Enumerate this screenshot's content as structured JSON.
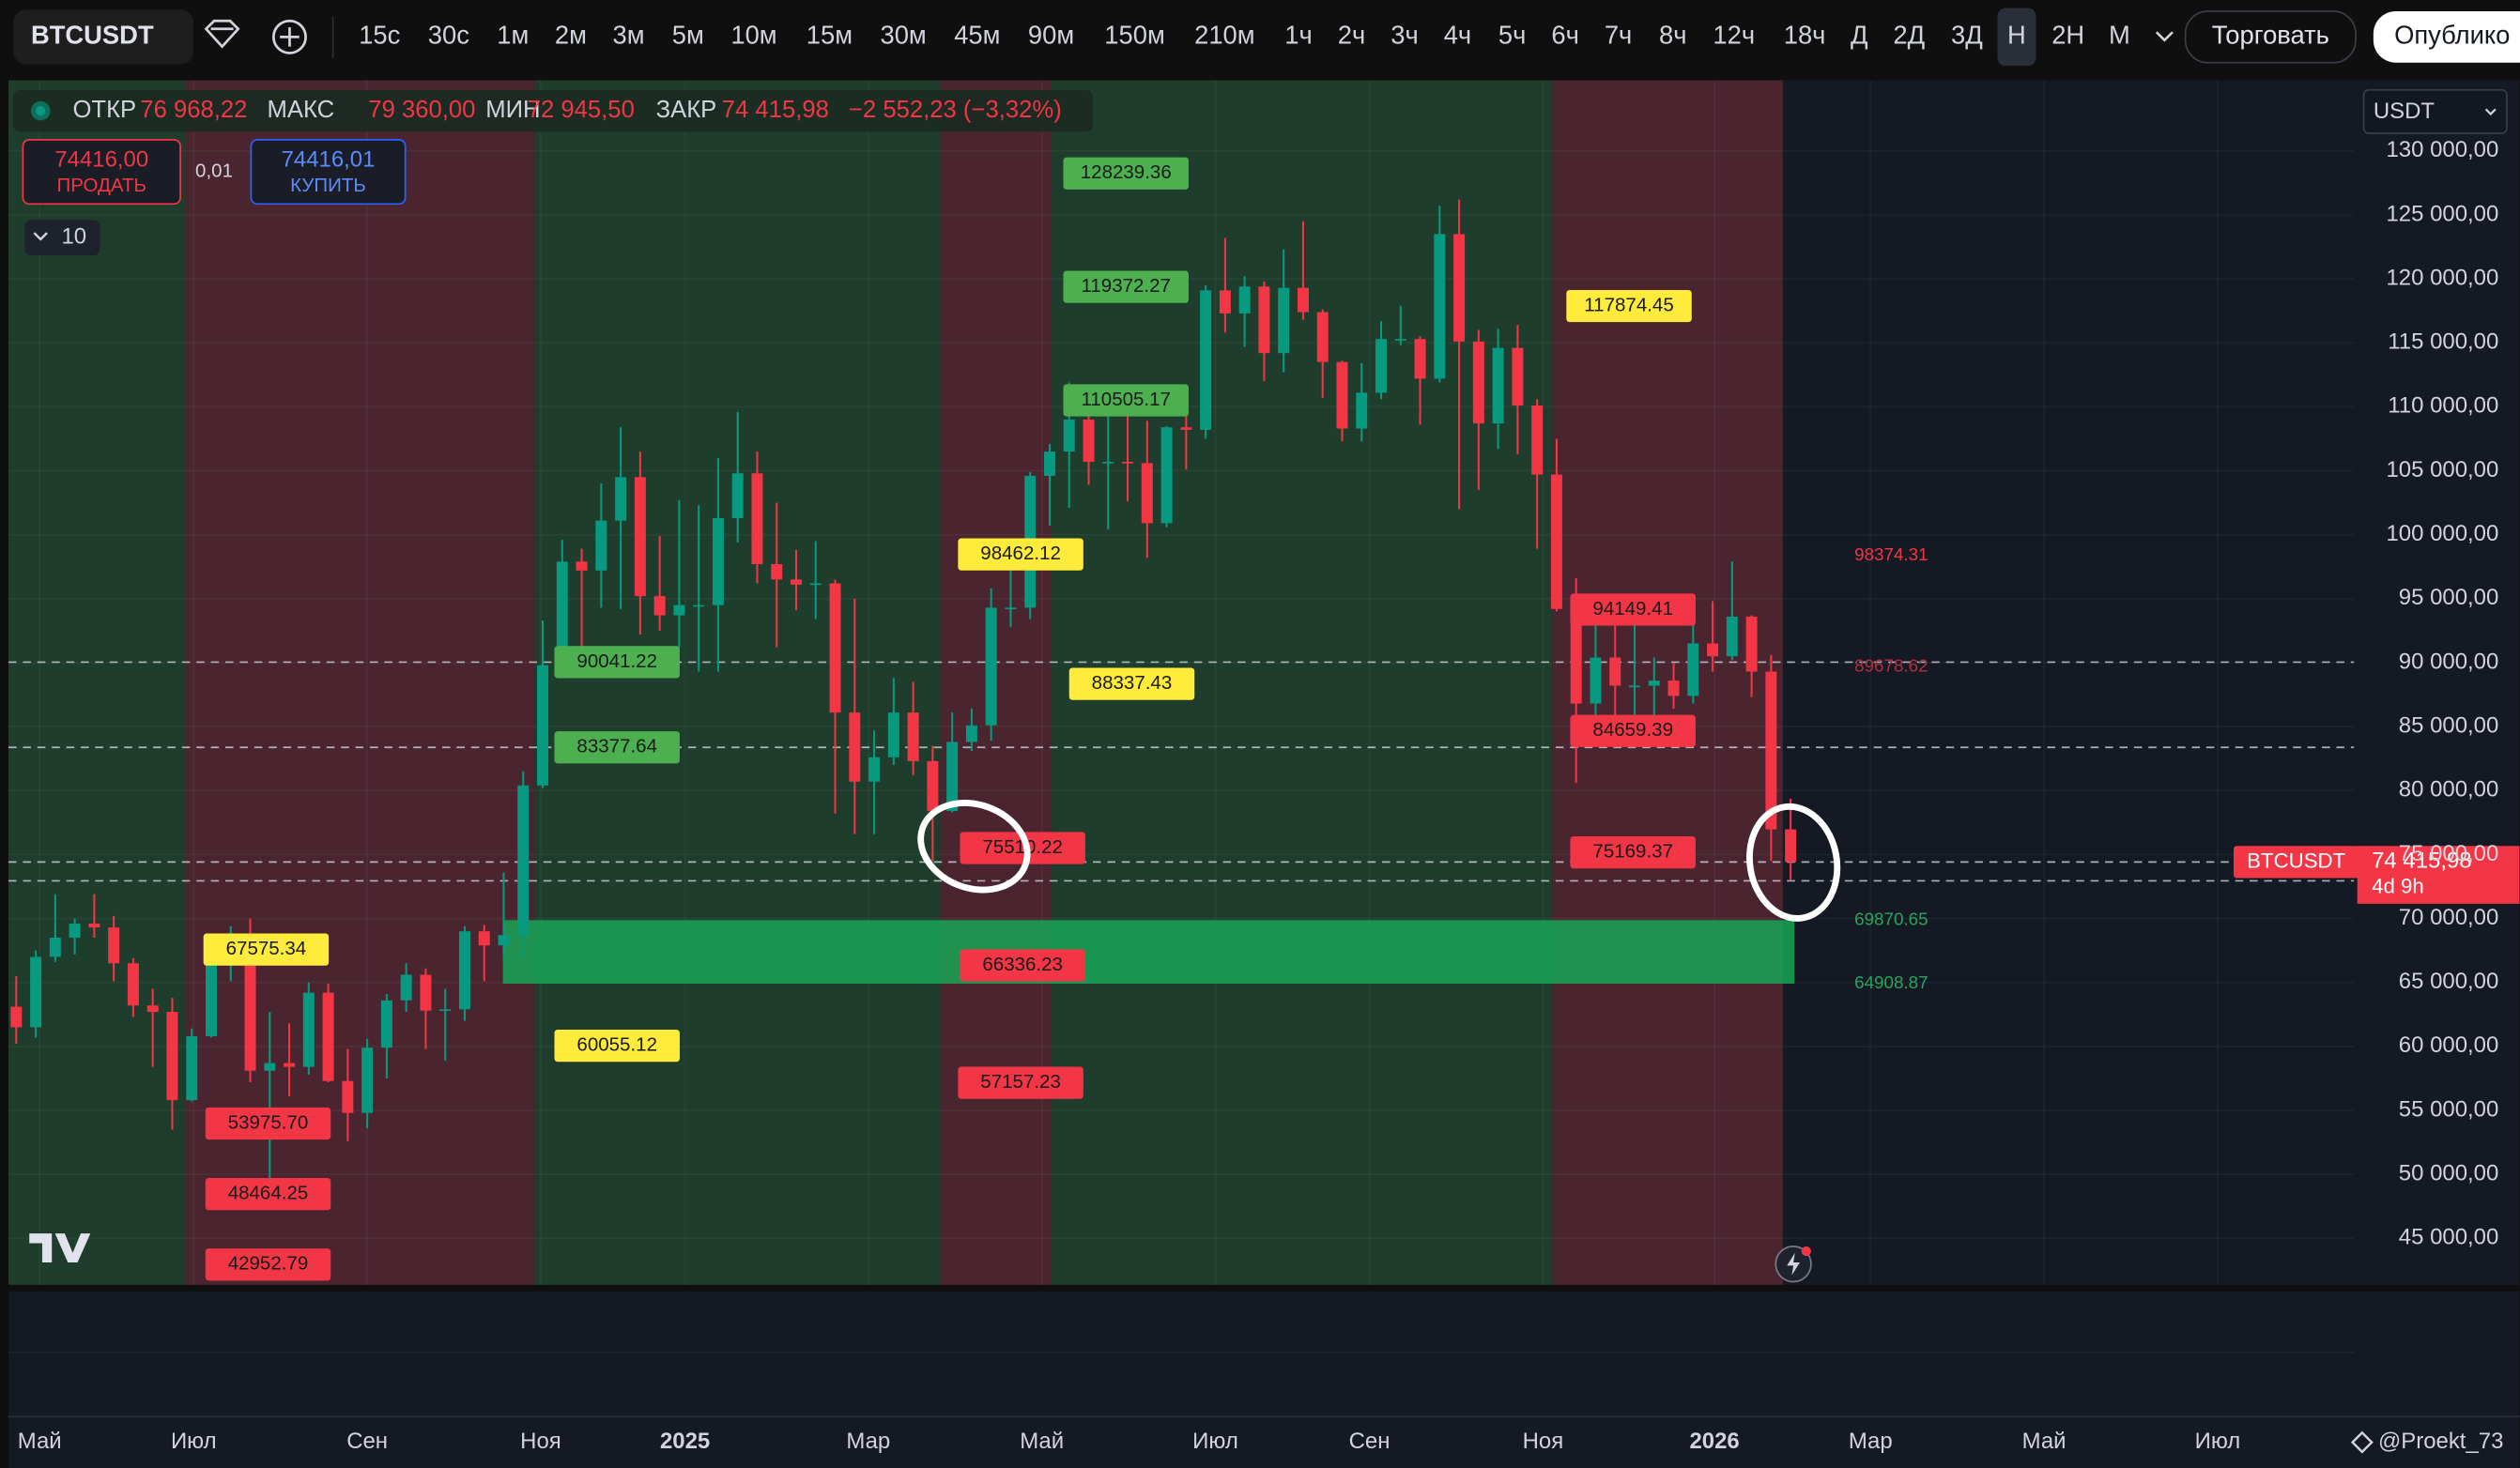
{
  "toolbar": {
    "symbol": "BTCUSDT",
    "intervals": [
      "15с",
      "30с",
      "1м",
      "2м",
      "3м",
      "5м",
      "10м",
      "15м",
      "30м",
      "45м",
      "90м",
      "150м",
      "210м",
      "1ч",
      "2ч",
      "3ч",
      "4ч",
      "5ч",
      "6ч",
      "7ч",
      "8ч",
      "12ч",
      "18ч",
      "Д",
      "2Д",
      "3Д",
      "Н",
      "2Н",
      "М"
    ],
    "trade_button": "Торговать",
    "publish_button": "Опублико"
  },
  "legend": {
    "items": [
      {
        "key": "ОТКР",
        "value": "76 968,22"
      },
      {
        "key": "МАКС",
        "value": "79 360,00"
      },
      {
        "key": "МИН",
        "value": "72 945,50"
      },
      {
        "key": "ЗАКР",
        "value": "74 415,98"
      }
    ],
    "change": "−2 552,23 (−3,32%)"
  },
  "order_panel": {
    "sell_price": "74416,00",
    "sell_label": "ПРОДАТЬ",
    "spread": "0,01",
    "buy_price": "74416,01",
    "buy_label": "КУПИТЬ"
  },
  "indicators_count": "10",
  "currency": "USDT",
  "price_tag": {
    "symbol": "BTCUSDT",
    "price": "74 415,98",
    "countdown": "4d 9h"
  },
  "watermark": "@Proekt_73",
  "chart_data": {
    "type": "candlestick",
    "up_color": "#089981",
    "down_color": "#f23645",
    "xlim": [
      -0.4,
      119.9
    ],
    "ylim": [
      41360,
      135520
    ],
    "grid": true,
    "open": [
      63100,
      61500,
      67000,
      68500,
      69600,
      69300,
      66500,
      63200,
      62700,
      55800,
      60800,
      68200,
      68200,
      58100,
      58700,
      58400,
      64200,
      57300,
      54800,
      59900,
      63600,
      65600,
      62800,
      62900,
      69000,
      67900,
      68700,
      80400,
      89800,
      97900,
      97200,
      101100,
      104500,
      95200,
      93700,
      94500,
      94500,
      101300,
      104800,
      97700,
      96500,
      96100,
      96200,
      86100,
      80700,
      82600,
      86100,
      82300,
      78400,
      83800,
      85100,
      94300,
      94300,
      104600,
      106500,
      109000,
      105700,
      105700,
      105600,
      100900,
      108400,
      108200,
      119100,
      117300,
      119400,
      114200,
      119300,
      117400,
      113500,
      108300,
      111100,
      115300,
      115300,
      112200,
      123500,
      115100,
      108700,
      114600,
      110100,
      104700,
      94200,
      86800,
      90400,
      88200,
      88200,
      88600,
      87400,
      91500,
      90500,
      93600,
      89300,
      76968.22
    ],
    "high": [
      65500,
      67500,
      71900,
      70000,
      71900,
      70200,
      66900,
      64500,
      63800,
      61400,
      68500,
      69400,
      70000,
      62700,
      61800,
      65000,
      64900,
      59800,
      60600,
      64100,
      66500,
      66100,
      64500,
      69400,
      69500,
      73600,
      81500,
      93300,
      99600,
      98900,
      104000,
      108400,
      106500,
      99900,
      102700,
      102300,
      106000,
      109600,
      106500,
      102500,
      98800,
      99500,
      96500,
      95000,
      84700,
      88800,
      88500,
      83500,
      86100,
      86400,
      95800,
      97900,
      104900,
      107100,
      111900,
      110400,
      110500,
      110300,
      108900,
      108500,
      110500,
      119500,
      123200,
      120200,
      119800,
      122300,
      124500,
      117600,
      113600,
      113400,
      116700,
      117900,
      115500,
      125700,
      126200,
      116000,
      116100,
      116400,
      110600,
      107500,
      96600,
      93100,
      94200,
      94600,
      90400,
      90000,
      94800,
      94800,
      97900,
      93700,
      90600,
      79360
    ],
    "low": [
      60200,
      60700,
      66600,
      67200,
      68500,
      65100,
      62300,
      58400,
      53500,
      55700,
      60700,
      65100,
      57200,
      49000,
      56100,
      57800,
      57200,
      52600,
      53600,
      57500,
      62700,
      59800,
      58900,
      62000,
      65100,
      66800,
      66900,
      80200,
      89300,
      90800,
      94300,
      94200,
      92200,
      92500,
      91200,
      89300,
      89300,
      99400,
      96200,
      91200,
      94100,
      93400,
      78200,
      76600,
      76600,
      82000,
      81200,
      74500,
      78300,
      83100,
      83900,
      92800,
      93400,
      100700,
      102100,
      103900,
      100400,
      102600,
      98200,
      100600,
      105100,
      107500,
      115800,
      114700,
      112000,
      112700,
      116800,
      110700,
      107300,
      107300,
      110600,
      114800,
      108600,
      111900,
      102000,
      103500,
      106700,
      106300,
      98900,
      94000,
      80600,
      83800,
      83800,
      84400,
      84500,
      86400,
      86800,
      89300,
      90200,
      87300,
      74500,
      72945.5
    ],
    "close": [
      61500,
      67000,
      68500,
      69600,
      69300,
      66500,
      63200,
      62700,
      55800,
      60800,
      68200,
      68200,
      58100,
      58700,
      58400,
      64200,
      57300,
      54800,
      59900,
      63600,
      65600,
      62800,
      62900,
      69000,
      67900,
      68700,
      80400,
      89800,
      97900,
      97200,
      101100,
      104500,
      95200,
      93700,
      94500,
      94500,
      101300,
      104800,
      97700,
      96500,
      96100,
      96200,
      86100,
      80700,
      82600,
      86100,
      82300,
      78400,
      83800,
      85100,
      94300,
      94300,
      104600,
      106500,
      109000,
      105700,
      105700,
      105600,
      100900,
      108400,
      108200,
      119100,
      117300,
      119400,
      114200,
      119300,
      117400,
      113500,
      108300,
      111100,
      115300,
      115300,
      112200,
      123500,
      115100,
      108700,
      114600,
      110100,
      104700,
      94200,
      86800,
      90400,
      88200,
      88200,
      88600,
      87400,
      91500,
      90500,
      93600,
      89300,
      76968.22,
      74415.98
    ],
    "zones": [
      {
        "start": -0.4,
        "end": 8.65,
        "color": "#1f3d2c"
      },
      {
        "start": 8.65,
        "end": 26.6,
        "color": "#4a2530"
      },
      {
        "start": 26.6,
        "end": 47.4,
        "color": "#1f3d2c"
      },
      {
        "start": 47.4,
        "end": 53.1,
        "color": "#4a2530"
      },
      {
        "start": 53.1,
        "end": 78.8,
        "color": "#1f3d2c"
      },
      {
        "start": 78.8,
        "end": 90.6,
        "color": "#4a2530"
      }
    ],
    "range_box": {
      "start": 24.96,
      "end": 91.2,
      "color": "#17a656"
    },
    "annotations": [
      {
        "value": 128239.36,
        "label": "128239.36",
        "at": 53.7,
        "color": "#4caf50"
      },
      {
        "value": 119372.27,
        "label": "119372.27",
        "at": 53.7,
        "color": "#4caf50"
      },
      {
        "value": 110505.17,
        "label": "110505.17",
        "at": 53.7,
        "color": "#4caf50"
      },
      {
        "value": 117874.45,
        "label": "117874.45",
        "at": 79.5,
        "color": "#ffeb3b"
      },
      {
        "value": 98462.12,
        "label": "98462.12",
        "at": 48.3,
        "color": "#ffeb3b"
      },
      {
        "value": 88337.43,
        "label": "88337.43",
        "at": 54.0,
        "color": "#ffeb3b"
      },
      {
        "value": 94149.41,
        "label": "94149.41",
        "at": 79.7,
        "color": "#f23645"
      },
      {
        "value": 90041.22,
        "label": "90041.22",
        "at": 27.6,
        "color": "#4caf50",
        "dashed": true
      },
      {
        "value": 83377.64,
        "label": "83377.64",
        "at": 27.6,
        "color": "#4caf50",
        "dashed": true
      },
      {
        "value": 84659.39,
        "label": "84659.39",
        "at": 79.7,
        "color": "#f23645"
      },
      {
        "value": 75510.22,
        "label": "75510.22",
        "at": 48.4,
        "color": "#f23645"
      },
      {
        "value": 75169.37,
        "label": "75169.37",
        "at": 79.7,
        "color": "#f23645"
      },
      {
        "value": 66336.23,
        "label": "66336.23",
        "at": 48.4,
        "color": "#f23645"
      },
      {
        "value": 60055.12,
        "label": "60055.12",
        "at": 27.6,
        "color": "#ffeb3b"
      },
      {
        "value": 57157.23,
        "label": "57157.23",
        "at": 48.3,
        "color": "#f23645"
      },
      {
        "value": 67575.34,
        "label": "67575.34",
        "at": 9.6,
        "color": "#ffeb3b"
      },
      {
        "value": 53975.7,
        "label": "53975.70",
        "at": 9.7,
        "color": "#f23645"
      },
      {
        "value": 48464.25,
        "label": "48464.25",
        "at": 9.7,
        "color": "#f23645"
      },
      {
        "value": 42952.79,
        "label": "42952.79",
        "at": 9.7,
        "color": "#f23645"
      }
    ],
    "right_levels": [
      {
        "value": 98374.31,
        "label": "98374.31",
        "color": "#f23645"
      },
      {
        "value": 89678.62,
        "label": "89678.62",
        "color": "#b03040"
      },
      {
        "value": 69870.65,
        "label": "69870.65",
        "color": "#26a65b"
      },
      {
        "value": 64908.87,
        "label": "64908.87",
        "color": "#26a65b"
      }
    ],
    "yticks": [
      {
        "value": 45000,
        "label": "45 000,00"
      },
      {
        "value": 50000,
        "label": "50 000,00"
      },
      {
        "value": 55000,
        "label": "55 000,00"
      },
      {
        "value": 60000,
        "label": "60 000,00"
      },
      {
        "value": 65000,
        "label": "65 000,00"
      },
      {
        "value": 70000,
        "label": "70 000,00"
      },
      {
        "value": 75000,
        "label": "75 000,00"
      },
      {
        "value": 80000,
        "label": "80 000,00"
      },
      {
        "value": 85000,
        "label": "85 000,00"
      },
      {
        "value": 90000,
        "label": "90 000,00"
      },
      {
        "value": 95000,
        "label": "95 000,00"
      },
      {
        "value": 100000,
        "label": "100 000,00"
      },
      {
        "value": 105000,
        "label": "105 000,00"
      },
      {
        "value": 110000,
        "label": "110 000,00"
      },
      {
        "value": 115000,
        "label": "115 000,00"
      },
      {
        "value": 120000,
        "label": "120 000,00"
      },
      {
        "value": 125000,
        "label": "125 000,00"
      },
      {
        "value": 130000,
        "label": "130 000,00"
      }
    ],
    "xticks": [
      {
        "value": 1.2,
        "label": "Май"
      },
      {
        "value": 9.1,
        "label": "Июл"
      },
      {
        "value": 18.0,
        "label": "Сен"
      },
      {
        "value": 26.9,
        "label": "Ноя"
      },
      {
        "value": 34.3,
        "label": "2025",
        "bold": true
      },
      {
        "value": 43.7,
        "label": "Мар"
      },
      {
        "value": 52.6,
        "label": "Май"
      },
      {
        "value": 61.5,
        "label": "Июл"
      },
      {
        "value": 69.4,
        "label": "Сен"
      },
      {
        "value": 78.3,
        "label": "Ноя"
      },
      {
        "value": 87.1,
        "label": "2026",
        "bold": true
      },
      {
        "value": 95.1,
        "label": "Мар"
      },
      {
        "value": 104.0,
        "label": "Май"
      },
      {
        "value": 112.9,
        "label": "Июл"
      }
    ]
  }
}
